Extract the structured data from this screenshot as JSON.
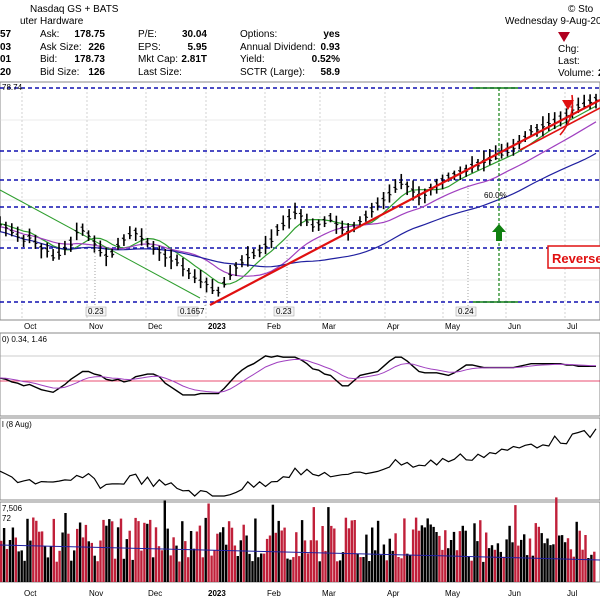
{
  "header": {
    "exchange": "Nasdaq GS + BATS",
    "industry": "uter Hardware",
    "date": "Wednesday  9-Aug-20",
    "watermark": "© Sto",
    "left_partial": [
      "57",
      "03",
      "01",
      "20"
    ],
    "ask": "Ask:",
    "ask_v": "178.75",
    "asksize": "Ask Size:",
    "asksize_v": "226",
    "bid": "Bid:",
    "bid_v": "178.73",
    "bidsize": "Bid Size:",
    "bidsize_v": "126",
    "pe": "P/E:",
    "pe_v": "30.04",
    "eps": "EPS:",
    "eps_v": "5.95",
    "mcap": "Mkt Cap:",
    "mcap_v": "2.81T",
    "lastsize": "Last Size:",
    "lastsize_v": "",
    "options": "Options:",
    "options_v": "yes",
    "div": "Annual Dividend:",
    "div_v": "0.93",
    "yield": "Yield:",
    "yield_v": "0.52%",
    "sctr": "SCTR (Large):",
    "sctr_v": "58.9",
    "chg": "Chg:",
    "last": "Last:",
    "volume": "Volume:",
    "volume_v": "2"
  },
  "colors": {
    "green_ma": "#2e9e2e",
    "purple_ma": "#a040c0",
    "blue_ma": "#2020a0",
    "trend": "#e01010",
    "dashed": "#1010b0",
    "retrace": "#108010",
    "bars": "#000000",
    "vol_red": "#c0203a"
  },
  "chart_data": {
    "type": "line",
    "x": [
      "Oct",
      "Nov",
      "Dec",
      "2023",
      "Feb",
      "Mar",
      "Apr",
      "May",
      "Jun",
      "Jul"
    ],
    "price": {
      "label": "78.74",
      "series": [
        150,
        149,
        147,
        146,
        144,
        145,
        143,
        141,
        140,
        138,
        139,
        141,
        143,
        147,
        148,
        146,
        143,
        140,
        138,
        139,
        142,
        144,
        146,
        147,
        145,
        143,
        141,
        140,
        138,
        137,
        136,
        134,
        132,
        130,
        129,
        128,
        126,
        125,
        128,
        131,
        134,
        136,
        138,
        139,
        140,
        142,
        144,
        148,
        150,
        152,
        154,
        153,
        151,
        149,
        150,
        151,
        152,
        150,
        148,
        147,
        149,
        151,
        153,
        155,
        157,
        159,
        161,
        163,
        165,
        164,
        162,
        160,
        161,
        163,
        165,
        166,
        167,
        168,
        169,
        170,
        171,
        172,
        173,
        174,
        175,
        176,
        177,
        178,
        180,
        182,
        184,
        185,
        186,
        187,
        188,
        189,
        190,
        192,
        193,
        194,
        195,
        196
      ],
      "annotations": [
        "0.23",
        "0.1657",
        "0.23",
        "0.24",
        "60.0%"
      ]
    },
    "reversal_text": "Reverse",
    "macd": {
      "label": "0) 0.34, 1.46"
    },
    "rsi": {
      "label": "l (8 Aug)"
    },
    "volume": {
      "label": "7,506",
      "sub": "72"
    }
  }
}
